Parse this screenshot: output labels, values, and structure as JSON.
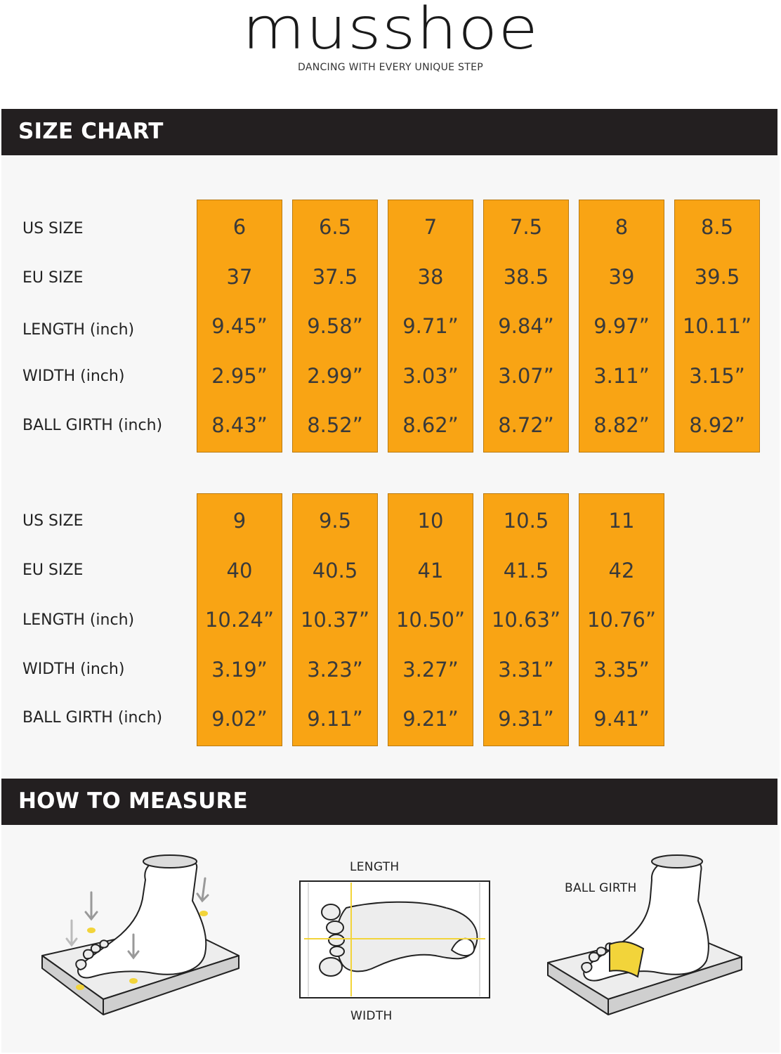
{
  "brand": {
    "name": "musshoe",
    "tagline": "DANCING WITH EVERY UNIQUE STEP"
  },
  "size_chart": {
    "heading": "SIZE CHART",
    "row_labels": [
      "US SIZE",
      "EU SIZE",
      "LENGTH (inch)",
      "WIDTH (inch)",
      "BALL GIRTH (inch)"
    ],
    "table1": [
      {
        "us": "6",
        "eu": "37",
        "length": "9.45”",
        "width": "2.95”",
        "ball_girth": "8.43”"
      },
      {
        "us": "6.5",
        "eu": "37.5",
        "length": "9.58”",
        "width": "2.99”",
        "ball_girth": "8.52”"
      },
      {
        "us": "7",
        "eu": "38",
        "length": "9.71”",
        "width": "3.03”",
        "ball_girth": "8.62”"
      },
      {
        "us": "7.5",
        "eu": "38.5",
        "length": "9.84”",
        "width": "3.07”",
        "ball_girth": "8.72”"
      },
      {
        "us": "8",
        "eu": "39",
        "length": "9.97”",
        "width": "3.11”",
        "ball_girth": "8.82”"
      },
      {
        "us": "8.5",
        "eu": "39.5",
        "length": "10.11”",
        "width": "3.15”",
        "ball_girth": "8.92”"
      }
    ],
    "table2": [
      {
        "us": "9",
        "eu": "40",
        "length": "10.24”",
        "width": "3.19”",
        "ball_girth": "9.02”"
      },
      {
        "us": "9.5",
        "eu": "40.5",
        "length": "10.37”",
        "width": "3.23”",
        "ball_girth": "9.11”"
      },
      {
        "us": "10",
        "eu": "41",
        "length": "10.50”",
        "width": "3.27”",
        "ball_girth": "9.21”"
      },
      {
        "us": "10.5",
        "eu": "41.5",
        "length": "10.63”",
        "width": "3.31”",
        "ball_girth": "9.31”"
      },
      {
        "us": "11",
        "eu": "42",
        "length": "10.76”",
        "width": "3.35”",
        "ball_girth": "9.41”"
      }
    ]
  },
  "how_to_measure": {
    "heading": "HOW TO MEASURE",
    "length_label": "LENGTH",
    "width_label": "WIDTH",
    "ball_girth_label": "BALL GIRTH"
  },
  "colors": {
    "section_bar": "#231f20",
    "cell_fill": "#f9a414",
    "panel_bg": "#f7f7f7",
    "marker": "#f2d43a"
  }
}
